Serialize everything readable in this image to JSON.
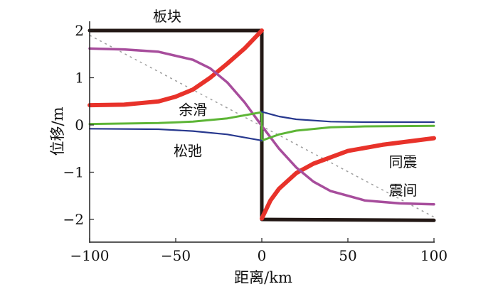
{
  "chart_data": {
    "type": "line",
    "title": "",
    "xlabel": "距离/km",
    "ylabel": "位移/m",
    "xlim": [
      -100,
      100
    ],
    "ylim": [
      -2.5,
      2
    ],
    "xticks": [
      -100,
      -50,
      0,
      50,
      100
    ],
    "xtick_labels": [
      "−100",
      "−50",
      "0",
      "50",
      "100"
    ],
    "yticks": [
      2,
      1,
      0,
      -1,
      -2
    ],
    "ytick_labels": [
      "2",
      "1",
      "0",
      "−1",
      "−2"
    ],
    "grid": false,
    "series": [
      {
        "name": "板块",
        "color": "#231815",
        "width": 5,
        "segments": [
          [
            [
              -100,
              2
            ],
            [
              0,
              2
            ],
            [
              0,
              -2
            ],
            [
              100,
              -2.02
            ]
          ]
        ]
      },
      {
        "name": "reference",
        "color": "#9e9e9e",
        "width": 1.5,
        "dash": true,
        "segments": [
          [
            [
              -100,
              1.9
            ],
            [
              100,
              -1.95
            ]
          ]
        ]
      },
      {
        "name": "同震",
        "color": "#e8322a",
        "width": 6,
        "segments": [
          [
            [
              -100,
              0.42
            ],
            [
              -80,
              0.43
            ],
            [
              -60,
              0.5
            ],
            [
              -50,
              0.6
            ],
            [
              -40,
              0.75
            ],
            [
              -30,
              1.0
            ],
            [
              -20,
              1.3
            ],
            [
              -10,
              1.62
            ],
            [
              0,
              2.0
            ]
          ],
          [
            [
              0,
              -1.98
            ],
            [
              5,
              -1.6
            ],
            [
              10,
              -1.35
            ],
            [
              20,
              -1.02
            ],
            [
              30,
              -0.82
            ],
            [
              50,
              -0.55
            ],
            [
              70,
              -0.42
            ],
            [
              100,
              -0.28
            ]
          ]
        ]
      },
      {
        "name": "震间",
        "color": "#a74d9c",
        "width": 3.5,
        "segments": [
          [
            [
              -100,
              1.62
            ],
            [
              -80,
              1.6
            ],
            [
              -60,
              1.55
            ],
            [
              -40,
              1.38
            ],
            [
              -30,
              1.2
            ],
            [
              -20,
              0.9
            ],
            [
              -10,
              0.48
            ],
            [
              0,
              -0.02
            ],
            [
              10,
              -0.5
            ],
            [
              20,
              -0.9
            ],
            [
              30,
              -1.2
            ],
            [
              40,
              -1.4
            ],
            [
              60,
              -1.6
            ],
            [
              80,
              -1.66
            ],
            [
              100,
              -1.68
            ]
          ]
        ]
      },
      {
        "name": "余滑",
        "color": "#5db536",
        "width": 3,
        "segments": [
          [
            [
              -100,
              0.02
            ],
            [
              -60,
              0.04
            ],
            [
              -40,
              0.07
            ],
            [
              -20,
              0.14
            ],
            [
              0,
              0.27
            ],
            [
              0,
              -0.33
            ],
            [
              10,
              -0.2
            ],
            [
              20,
              -0.12
            ],
            [
              40,
              -0.05
            ],
            [
              60,
              -0.03
            ],
            [
              100,
              -0.02
            ]
          ]
        ]
      },
      {
        "name": "松弛",
        "color": "#27388e",
        "width": 2.2,
        "segments": [
          [
            [
              -100,
              -0.08
            ],
            [
              -60,
              -0.09
            ],
            [
              -40,
              -0.13
            ],
            [
              -20,
              -0.2
            ],
            [
              0,
              -0.33
            ]
          ],
          [
            [
              0,
              0.28
            ],
            [
              10,
              0.18
            ],
            [
              20,
              0.12
            ],
            [
              40,
              0.07
            ],
            [
              60,
              0.06
            ],
            [
              100,
              0.06
            ]
          ]
        ]
      }
    ],
    "annotations": [
      {
        "text": "板块",
        "x": -55,
        "y": 2.3
      },
      {
        "text": "余滑",
        "x": -40,
        "y": 0.32
      },
      {
        "text": "松弛",
        "x": -43,
        "y": -0.55
      },
      {
        "text": "同震",
        "x": 82,
        "y": -0.78
      },
      {
        "text": "震间",
        "x": 82,
        "y": -1.38
      }
    ]
  }
}
